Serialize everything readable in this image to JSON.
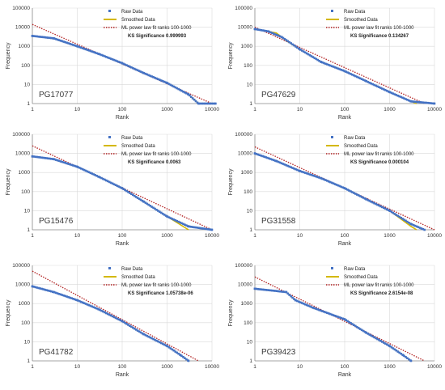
{
  "colors": {
    "raw": "#4472C4",
    "smoothed": "#D4B800",
    "fit": "#B22222",
    "grid": "#d9d9d9",
    "axis": "#8c8c8c"
  },
  "legend_labels": {
    "raw": "Raw Data",
    "smoothed": "Smoothed Data",
    "fit": "ML power law fit ranks 100-1000"
  },
  "chart_data": [
    {
      "type": "line",
      "scale": "log-log",
      "grid": true,
      "legend_position": "top-right",
      "id_label": "PG17077",
      "xlabel": "Rank",
      "ylabel": "Frequency",
      "ks_label": "KS Significance 0.999993",
      "xlim": [
        1,
        10000
      ],
      "ylim": [
        1,
        100000
      ],
      "x_ticks": [
        "1",
        "10",
        "100",
        "1000",
        "10000"
      ],
      "y_ticks": [
        "1",
        "10",
        "100",
        "1000",
        "10000",
        "100000"
      ],
      "raw_data": [
        [
          1,
          3500
        ],
        [
          3,
          2600
        ],
        [
          10,
          1000
        ],
        [
          30,
          400
        ],
        [
          100,
          130
        ],
        [
          300,
          40
        ],
        [
          1000,
          12
        ],
        [
          3000,
          3
        ],
        [
          5000,
          1
        ],
        [
          12000,
          1
        ]
      ],
      "smoothed_data": [
        [
          1,
          3600
        ],
        [
          3,
          2500
        ],
        [
          10,
          1000
        ],
        [
          30,
          400
        ],
        [
          100,
          130
        ],
        [
          300,
          40
        ],
        [
          1000,
          12
        ],
        [
          3000,
          3
        ],
        [
          5000,
          1
        ]
      ],
      "fit_line": [
        [
          1,
          14000
        ],
        [
          10000,
          1
        ]
      ]
    },
    {
      "type": "line",
      "scale": "log-log",
      "grid": true,
      "legend_position": "top-right",
      "id_label": "PG47629",
      "xlabel": "Rank",
      "ylabel": "Frequency",
      "ks_label": "KS Significance 0.134267",
      "xlim": [
        1,
        10000
      ],
      "ylim": [
        1,
        100000
      ],
      "x_ticks": [
        "1",
        "10",
        "100",
        "1000",
        "10000"
      ],
      "y_ticks": [
        "1",
        "10",
        "100",
        "1000",
        "10000",
        "100000"
      ],
      "raw_data": [
        [
          1,
          8000
        ],
        [
          2,
          6000
        ],
        [
          4,
          3000
        ],
        [
          10,
          700
        ],
        [
          30,
          150
        ],
        [
          100,
          50
        ],
        [
          300,
          15
        ],
        [
          1000,
          4
        ],
        [
          3000,
          1.3
        ],
        [
          10000,
          1
        ]
      ],
      "smoothed_data": [
        [
          1,
          8000
        ],
        [
          3,
          5000
        ],
        [
          5,
          2000
        ],
        [
          10,
          700
        ],
        [
          30,
          150
        ],
        [
          100,
          50
        ],
        [
          300,
          15
        ],
        [
          1000,
          4
        ],
        [
          3000,
          1.3
        ],
        [
          4000,
          1
        ]
      ],
      "fit_line": [
        [
          1,
          10000
        ],
        [
          6000,
          1
        ]
      ]
    },
    {
      "type": "line",
      "scale": "log-log",
      "grid": true,
      "legend_position": "top-right",
      "id_label": "PG15476",
      "xlabel": "Rank",
      "ylabel": "Frequency",
      "ks_label": "KS Significance 0.0063",
      "xlim": [
        1,
        10000
      ],
      "ylim": [
        1,
        100000
      ],
      "x_ticks": [
        "1",
        "10",
        "100",
        "1000",
        "10000"
      ],
      "y_ticks": [
        "1",
        "10",
        "100",
        "1000",
        "10000",
        "100000"
      ],
      "raw_data": [
        [
          1,
          7000
        ],
        [
          3,
          5000
        ],
        [
          10,
          2000
        ],
        [
          30,
          600
        ],
        [
          100,
          150
        ],
        [
          300,
          30
        ],
        [
          1000,
          5
        ],
        [
          3000,
          1.5
        ],
        [
          10000,
          1
        ]
      ],
      "smoothed_data": [
        [
          1,
          7000
        ],
        [
          3,
          5000
        ],
        [
          10,
          2000
        ],
        [
          30,
          600
        ],
        [
          100,
          150
        ],
        [
          300,
          30
        ],
        [
          1000,
          5
        ],
        [
          3000,
          1
        ]
      ],
      "fit_line": [
        [
          1,
          25000
        ],
        [
          10000,
          1
        ]
      ]
    },
    {
      "type": "line",
      "scale": "log-log",
      "grid": true,
      "legend_position": "top-right",
      "id_label": "PG31558",
      "xlabel": "Rank",
      "ylabel": "Frequency",
      "ks_label": "KS Significance 0.000104",
      "xlim": [
        1,
        10000
      ],
      "ylim": [
        1,
        100000
      ],
      "x_ticks": [
        "1",
        "10",
        "100",
        "1000",
        "10000"
      ],
      "y_ticks": [
        "1",
        "10",
        "100",
        "1000",
        "10000",
        "100000"
      ],
      "raw_data": [
        [
          1,
          10000
        ],
        [
          3,
          4000
        ],
        [
          10,
          1200
        ],
        [
          30,
          500
        ],
        [
          100,
          150
        ],
        [
          300,
          40
        ],
        [
          1000,
          10
        ],
        [
          3000,
          2
        ],
        [
          6000,
          1
        ]
      ],
      "smoothed_data": [
        [
          1,
          10000
        ],
        [
          3,
          4000
        ],
        [
          10,
          1200
        ],
        [
          30,
          500
        ],
        [
          100,
          150
        ],
        [
          300,
          40
        ],
        [
          1000,
          10
        ],
        [
          3000,
          1.5
        ],
        [
          4000,
          1
        ]
      ],
      "fit_line": [
        [
          1,
          22000
        ],
        [
          10000,
          1
        ]
      ]
    },
    {
      "type": "line",
      "scale": "log-log",
      "grid": true,
      "legend_position": "top-right",
      "id_label": "PG41782",
      "xlabel": "Rank",
      "ylabel": "Frequency",
      "ks_label": "KS Significance 1.05738e-06",
      "xlim": [
        1,
        10000
      ],
      "ylim": [
        1,
        100000
      ],
      "x_ticks": [
        "1",
        "10",
        "100",
        "1000",
        "10000"
      ],
      "y_ticks": [
        "1",
        "10",
        "100",
        "1000",
        "10000",
        "100000"
      ],
      "raw_data": [
        [
          1,
          8000
        ],
        [
          3,
          4000
        ],
        [
          10,
          1500
        ],
        [
          30,
          500
        ],
        [
          100,
          120
        ],
        [
          300,
          25
        ],
        [
          1000,
          6
        ],
        [
          2000,
          2
        ],
        [
          3000,
          1
        ]
      ],
      "smoothed_data": [
        [
          1,
          8000
        ],
        [
          3,
          4000
        ],
        [
          10,
          1500
        ],
        [
          30,
          500
        ],
        [
          100,
          120
        ],
        [
          300,
          25
        ],
        [
          1000,
          6
        ],
        [
          2000,
          2
        ],
        [
          3000,
          1
        ]
      ],
      "fit_line": [
        [
          1,
          50000
        ],
        [
          5000,
          1
        ]
      ]
    },
    {
      "type": "line",
      "scale": "log-log",
      "grid": true,
      "legend_position": "top-right",
      "id_label": "PG39423",
      "xlabel": "Rank",
      "ylabel": "Frequency",
      "ks_label": "KS Significance 2.6154e-08",
      "xlim": [
        1,
        10000
      ],
      "ylim": [
        1,
        100000
      ],
      "x_ticks": [
        "1",
        "10",
        "100",
        "1000",
        "10000"
      ],
      "y_ticks": [
        "1",
        "10",
        "100",
        "1000",
        "10000",
        "100000"
      ],
      "raw_data": [
        [
          1,
          6000
        ],
        [
          5,
          4000
        ],
        [
          8,
          1500
        ],
        [
          20,
          600
        ],
        [
          100,
          150
        ],
        [
          300,
          30
        ],
        [
          1000,
          6
        ],
        [
          2000,
          2
        ],
        [
          3000,
          1
        ]
      ],
      "smoothed_data": [
        [
          1,
          6000
        ],
        [
          5,
          4000
        ],
        [
          8,
          1500
        ],
        [
          20,
          600
        ],
        [
          100,
          150
        ],
        [
          300,
          30
        ],
        [
          1000,
          6
        ],
        [
          2000,
          2
        ],
        [
          3000,
          1
        ]
      ],
      "fit_line": [
        [
          1,
          25000
        ],
        [
          6000,
          1
        ]
      ]
    }
  ]
}
